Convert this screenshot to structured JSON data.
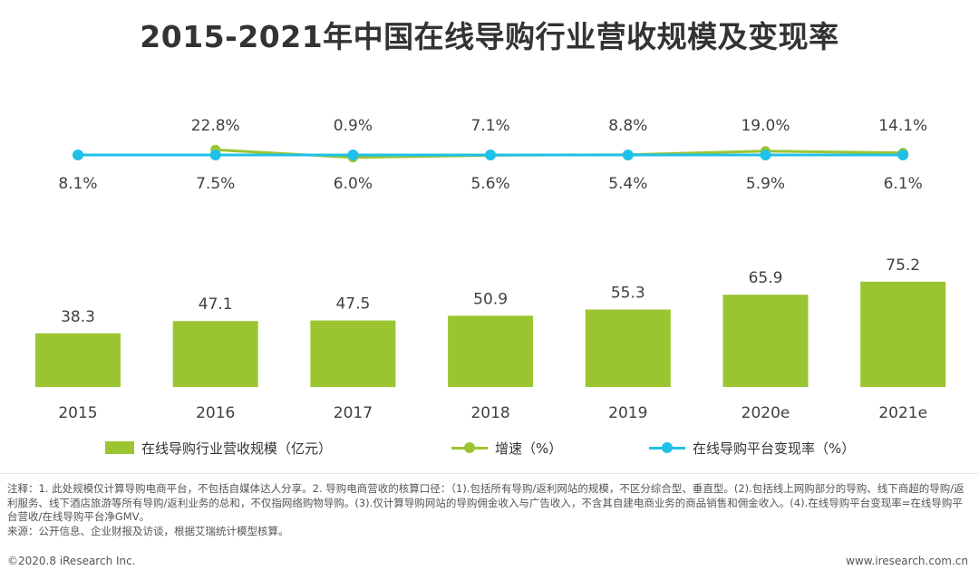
{
  "title": "2015-2021年中国在线导购行业营收规模及变现率",
  "chart_data": {
    "type": "bar+line",
    "categories": [
      "2015",
      "2016",
      "2017",
      "2018",
      "2019",
      "2020e",
      "2021e"
    ],
    "series": [
      {
        "name": "在线导购行业营收规模（亿元）",
        "type": "bar",
        "values": [
          38.3,
          47.1,
          47.5,
          50.9,
          55.3,
          65.9,
          75.2
        ],
        "labels": [
          "38.3",
          "47.1",
          "47.5",
          "50.9",
          "55.3",
          "65.9",
          "75.2"
        ]
      },
      {
        "name": "增速（%）",
        "type": "line",
        "values": [
          null,
          22.8,
          0.9,
          7.1,
          8.8,
          19.0,
          14.1
        ],
        "labels": [
          "",
          "22.8%",
          "0.9%",
          "7.1%",
          "8.8%",
          "19.0%",
          "14.1%"
        ]
      },
      {
        "name": "在线导购平台变现率（%）",
        "type": "line",
        "values": [
          8.1,
          7.5,
          6.0,
          5.6,
          5.4,
          5.9,
          6.1
        ],
        "labels": [
          "8.1%",
          "7.5%",
          "6.0%",
          "5.6%",
          "5.4%",
          "5.9%",
          "6.1%"
        ]
      }
    ],
    "ylim_bar": [
      0,
      80
    ],
    "colors": {
      "bar": "#9bc530",
      "growth": "#9bc530",
      "rate": "#1fc1e8"
    }
  },
  "legend": {
    "bar": "在线导购行业营收规模（亿元）",
    "growth": "增速（%）",
    "rate": "在线导购平台变现率（%）"
  },
  "notes": {
    "line1": "注释：1. 此处规模仅计算导购电商平台，不包括自媒体达人分享。2. 导购电商营收的核算口径：（1).包括所有导购/返利网站的规模，不区分综合型、垂直型。(2).包括线上网购部分的导购、线下商超的导购/返利服务、线下酒店旅游等所有导购/返利业务的总和，不仅指网络购物导购。(3).仅计算导购网站的导购佣金收入与广告收入，不含其自建电商业务的商品销售和佣金收入。(4).在线导购平台变现率=在线导购平台营收/在线导购平台净GMV。",
    "line2": "来源：公开信息、企业财报及访谈，根据艾瑞统计模型核算。"
  },
  "footer": {
    "left": "©2020.8 iResearch Inc.",
    "right": "www.iresearch.com.cn"
  }
}
